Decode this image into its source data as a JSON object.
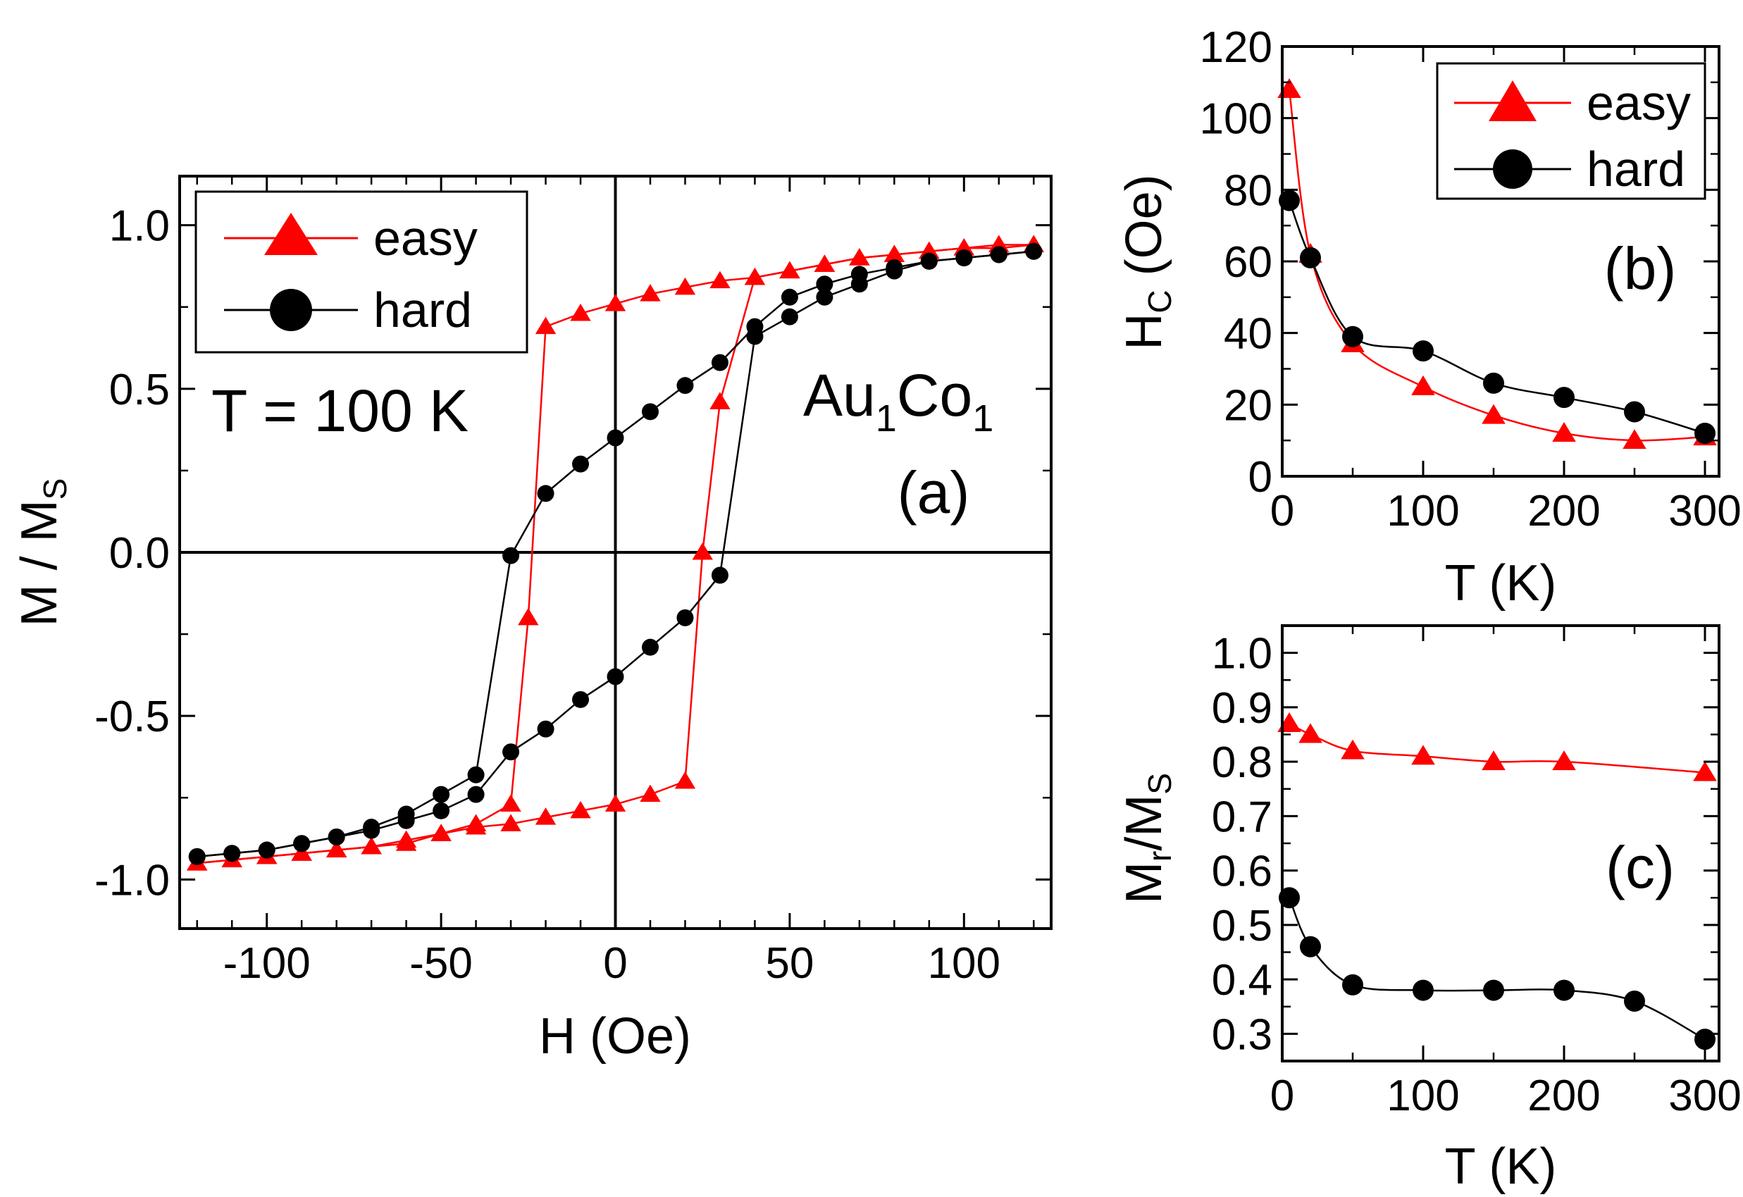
{
  "chart_data": [
    {
      "id": "a",
      "type": "line",
      "panel_label": "(a)",
      "xlabel": "H (Oe)",
      "ylabel": "M / M",
      "ylabel_sub": "S",
      "xlim": [
        -125,
        125
      ],
      "ylim": [
        -1.15,
        1.15
      ],
      "xticks": [
        -100,
        -50,
        0,
        50,
        100
      ],
      "xtick_labels": [
        "-100",
        "-50",
        "0",
        "50",
        "100"
      ],
      "yticks": [
        -1.0,
        -0.5,
        0.0,
        0.5,
        1.0
      ],
      "ytick_labels": [
        "-1.0",
        "-0.5",
        "0.0",
        "0.5",
        "1.0"
      ],
      "annotations": {
        "temperature": "T = 100 K",
        "sample_main": "Au",
        "sample_sub1": "1",
        "sample_main2": "Co",
        "sample_sub2": "1"
      },
      "legend": [
        {
          "label": "easy",
          "color": "#ff0000",
          "marker": "triangle"
        },
        {
          "label": "hard",
          "color": "#000000",
          "marker": "circle"
        }
      ],
      "series": [
        {
          "name": "easy (descending)",
          "color": "#ff0000",
          "marker": "triangle",
          "x": [
            120,
            110,
            100,
            90,
            80,
            70,
            60,
            50,
            40,
            30,
            20,
            10,
            0,
            -10,
            -20,
            -25,
            -30,
            -40,
            -50,
            -60,
            -70,
            -80,
            -90,
            -100,
            -110,
            -120
          ],
          "y": [
            0.94,
            0.93,
            0.93,
            0.92,
            0.91,
            0.9,
            0.88,
            0.86,
            0.84,
            0.83,
            0.81,
            0.79,
            0.76,
            0.73,
            0.69,
            -0.2,
            -0.77,
            -0.83,
            -0.86,
            -0.89,
            -0.9,
            -0.91,
            -0.92,
            -0.93,
            -0.94,
            -0.95
          ]
        },
        {
          "name": "easy (ascending)",
          "color": "#ff0000",
          "marker": "triangle",
          "x": [
            -120,
            -110,
            -100,
            -90,
            -80,
            -70,
            -60,
            -50,
            -40,
            -30,
            -20,
            -10,
            0,
            10,
            20,
            25,
            30,
            40,
            50,
            60,
            70,
            80,
            90,
            100,
            110,
            120
          ],
          "y": [
            -0.95,
            -0.94,
            -0.93,
            -0.92,
            -0.91,
            -0.9,
            -0.88,
            -0.86,
            -0.84,
            -0.83,
            -0.81,
            -0.79,
            -0.77,
            -0.74,
            -0.7,
            0.0,
            0.46,
            0.84,
            0.86,
            0.88,
            0.9,
            0.91,
            0.92,
            0.93,
            0.94,
            0.94
          ]
        },
        {
          "name": "hard (descending)",
          "color": "#000000",
          "marker": "circle",
          "x": [
            120,
            110,
            100,
            90,
            80,
            70,
            60,
            50,
            40,
            30,
            20,
            10,
            0,
            -10,
            -20,
            -30,
            -40,
            -50,
            -60,
            -70,
            -80,
            -90,
            -100,
            -110,
            -120
          ],
          "y": [
            0.92,
            0.91,
            0.9,
            0.89,
            0.87,
            0.85,
            0.82,
            0.78,
            0.69,
            0.58,
            0.51,
            0.43,
            0.35,
            0.27,
            0.18,
            -0.01,
            -0.68,
            -0.74,
            -0.8,
            -0.84,
            -0.87,
            -0.89,
            -0.91,
            -0.92,
            -0.93
          ]
        },
        {
          "name": "hard (ascending)",
          "color": "#000000",
          "marker": "circle",
          "x": [
            -120,
            -110,
            -100,
            -90,
            -80,
            -70,
            -60,
            -50,
            -40,
            -30,
            -20,
            -10,
            0,
            10,
            20,
            30,
            40,
            50,
            60,
            70,
            80,
            90,
            100,
            110,
            120
          ],
          "y": [
            -0.93,
            -0.92,
            -0.91,
            -0.89,
            -0.87,
            -0.85,
            -0.82,
            -0.79,
            -0.74,
            -0.61,
            -0.54,
            -0.45,
            -0.38,
            -0.29,
            -0.2,
            -0.07,
            0.66,
            0.72,
            0.78,
            0.82,
            0.86,
            0.89,
            0.9,
            0.91,
            0.92
          ]
        }
      ]
    },
    {
      "id": "b",
      "type": "line",
      "panel_label": "(b)",
      "xlabel": "T (K)",
      "ylabel": "H",
      "ylabel_sub": "C",
      "ylabel_tail": " (Oe)",
      "xlim": [
        0,
        310
      ],
      "ylim": [
        0,
        120
      ],
      "xticks": [
        0,
        100,
        200,
        300
      ],
      "xtick_labels": [
        "0",
        "100",
        "200",
        "300"
      ],
      "yticks": [
        0,
        20,
        40,
        60,
        80,
        100,
        120
      ],
      "ytick_labels": [
        "0",
        "20",
        "40",
        "60",
        "80",
        "100",
        "120"
      ],
      "legend": [
        {
          "label": "easy",
          "color": "#ff0000",
          "marker": "triangle"
        },
        {
          "label": "hard",
          "color": "#000000",
          "marker": "circle"
        }
      ],
      "series": [
        {
          "name": "easy",
          "color": "#ff0000",
          "marker": "triangle",
          "x": [
            5,
            20,
            50,
            100,
            150,
            200,
            250,
            300
          ],
          "y": [
            108,
            62,
            37,
            25,
            17,
            12,
            10,
            11
          ]
        },
        {
          "name": "hard",
          "color": "#000000",
          "marker": "circle",
          "x": [
            5,
            20,
            50,
            100,
            150,
            200,
            250,
            300
          ],
          "y": [
            77,
            61,
            39,
            35,
            26,
            22,
            18,
            12
          ]
        }
      ]
    },
    {
      "id": "c",
      "type": "line",
      "panel_label": "(c)",
      "xlabel": "T (K)",
      "ylabel": "M",
      "ylabel_sub": "r",
      "ylabel_mid": "/M",
      "ylabel_sub2": "S",
      "xlim": [
        0,
        310
      ],
      "ylim": [
        0.25,
        1.05
      ],
      "xticks": [
        0,
        100,
        200,
        300
      ],
      "xtick_labels": [
        "0",
        "100",
        "200",
        "300"
      ],
      "yticks": [
        0.3,
        0.4,
        0.5,
        0.6,
        0.7,
        0.8,
        0.9,
        1.0
      ],
      "ytick_labels": [
        "0.3",
        "0.4",
        "0.5",
        "0.6",
        "0.7",
        "0.8",
        "0.9",
        "1.0"
      ],
      "series": [
        {
          "name": "easy",
          "color": "#ff0000",
          "marker": "triangle",
          "x": [
            5,
            20,
            50,
            100,
            150,
            200,
            300
          ],
          "y": [
            0.87,
            0.85,
            0.82,
            0.81,
            0.8,
            0.8,
            0.78
          ]
        },
        {
          "name": "hard",
          "color": "#000000",
          "marker": "circle",
          "x": [
            5,
            20,
            50,
            100,
            150,
            200,
            250,
            300
          ],
          "y": [
            0.55,
            0.46,
            0.39,
            0.38,
            0.38,
            0.38,
            0.36,
            0.29
          ]
        }
      ]
    }
  ]
}
